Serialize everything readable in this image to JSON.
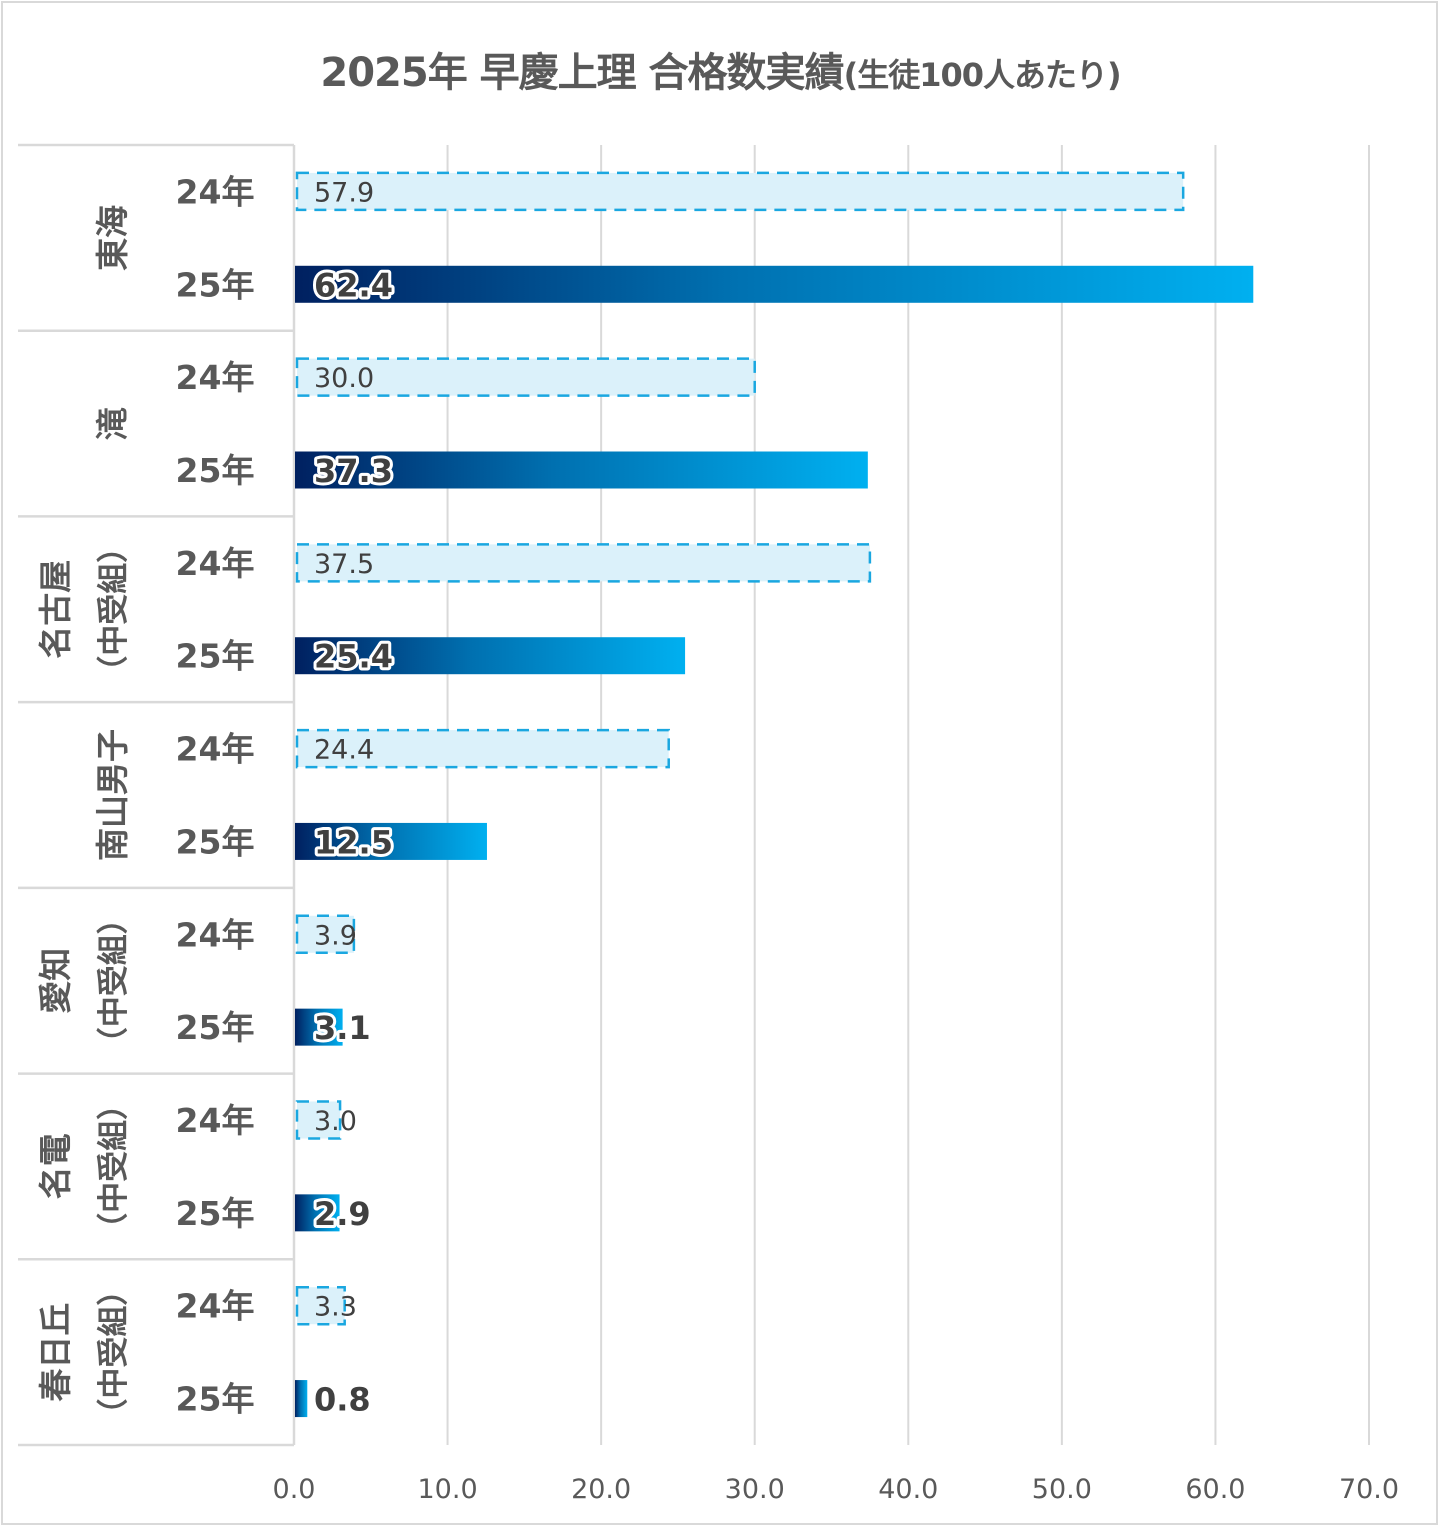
{
  "chart_data": {
    "type": "bar",
    "orientation": "horizontal",
    "title": "2025年 早慶上理 合格数実績",
    "subtitle": "(生徒100人あたり)",
    "xlabel": "",
    "ylabel": "",
    "xlim": [
      0,
      70
    ],
    "x_ticks": [
      "0.0",
      "10.0",
      "20.0",
      "30.0",
      "40.0",
      "50.0",
      "60.0",
      "70.0"
    ],
    "grid": true,
    "legend": "none",
    "series_names": [
      "24年",
      "25年"
    ],
    "groups": [
      {
        "school": "東海",
        "note": "",
        "values": [
          57.9,
          62.4
        ],
        "labels": [
          "57.9",
          "62.4"
        ]
      },
      {
        "school": "滝",
        "note": "",
        "values": [
          30.0,
          37.3
        ],
        "labels": [
          "30.0",
          "37.3"
        ]
      },
      {
        "school": "名古屋",
        "note": "（中受組）",
        "values": [
          37.5,
          25.4
        ],
        "labels": [
          "37.5",
          "25.4"
        ]
      },
      {
        "school": "南山男子",
        "note": "",
        "values": [
          24.4,
          12.5
        ],
        "labels": [
          "24.4",
          "12.5"
        ]
      },
      {
        "school": "愛知",
        "note": "（中受組）",
        "values": [
          3.9,
          3.1
        ],
        "labels": [
          "3.9",
          "3.1"
        ]
      },
      {
        "school": "名電",
        "note": "（中受組）",
        "values": [
          3.0,
          2.9
        ],
        "labels": [
          "3.0",
          "2.9"
        ]
      },
      {
        "school": "春日丘",
        "note": "（中受組）",
        "values": [
          3.3,
          0.8
        ],
        "labels": [
          "3.3",
          "0.8"
        ]
      }
    ],
    "colors": {
      "bar24_fill": "#dbf1fa",
      "bar24_border": "#1aa7e0",
      "bar25_gradient_start": "#002060",
      "bar25_gradient_end": "#00b0f0",
      "grid": "#d9d9d9",
      "text": "#595959"
    }
  }
}
